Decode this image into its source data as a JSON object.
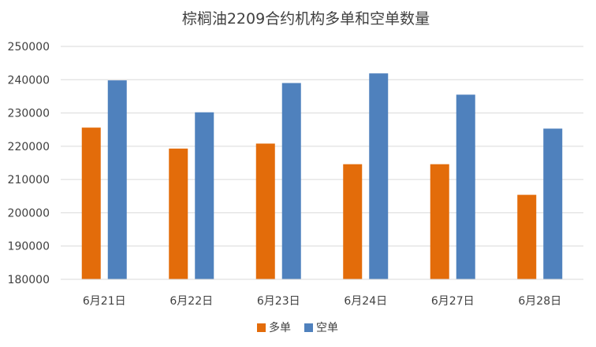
{
  "chart_data": {
    "type": "bar",
    "title": "棕榈油2209合约机构多单和空单数量",
    "xlabel": "",
    "ylabel": "",
    "categories": [
      "6月21日",
      "6月22日",
      "6月23日",
      "6月24日",
      "6月27日",
      "6月28日"
    ],
    "series": [
      {
        "name": "多单",
        "color": "#E36C0A",
        "values": [
          225600,
          219300,
          220800,
          214600,
          214600,
          205400
        ]
      },
      {
        "name": "空单",
        "color": "#4F81BD",
        "values": [
          239800,
          230200,
          239000,
          241900,
          235500,
          225300
        ]
      }
    ],
    "ylim": [
      180000,
      250000
    ],
    "yticks": [
      180000,
      190000,
      200000,
      210000,
      220000,
      230000,
      240000,
      250000
    ],
    "grid": true,
    "legend": "bottom"
  }
}
